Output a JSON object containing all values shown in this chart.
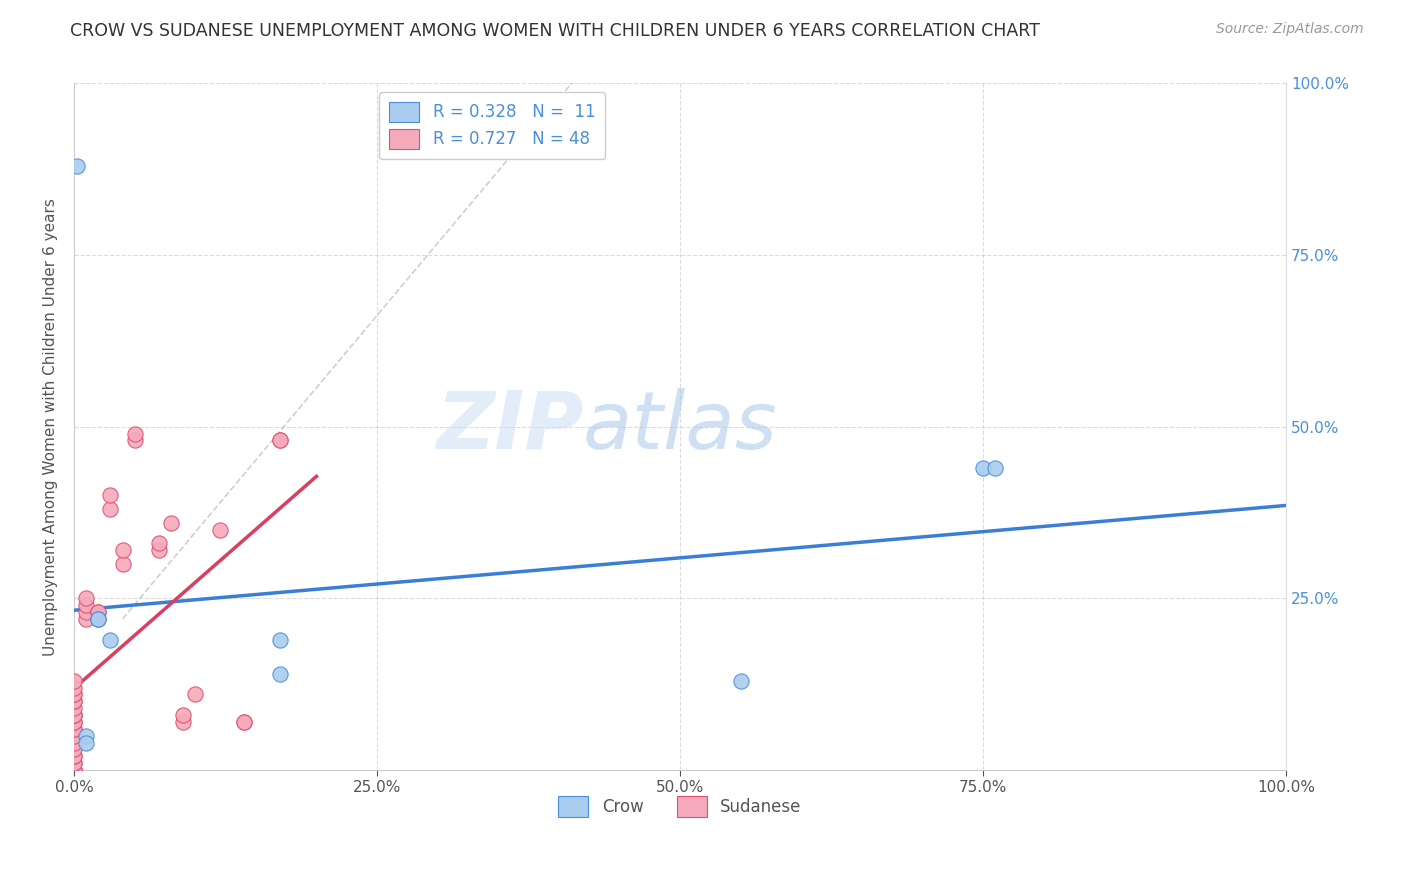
{
  "title": "CROW VS SUDANESE UNEMPLOYMENT AMONG WOMEN WITH CHILDREN UNDER 6 YEARS CORRELATION CHART",
  "source": "Source: ZipAtlas.com",
  "ylabel": "Unemployment Among Women with Children Under 6 years",
  "crow_R": 0.328,
  "crow_N": 11,
  "sudanese_R": 0.727,
  "sudanese_N": 48,
  "crow_color": "#aaccee",
  "crow_edge_color": "#4a90d9",
  "sudanese_color": "#f4aabb",
  "sudanese_edge_color": "#e05070",
  "crow_line_color": "#3a7fd5",
  "sudanese_line_color": "#d94060",
  "crow_points_x": [
    0.002,
    0.03,
    0.17,
    0.17,
    0.55,
    0.75,
    0.76,
    0.02,
    0.02,
    0.01,
    0.01
  ],
  "crow_points_y": [
    0.88,
    0.19,
    0.19,
    0.14,
    0.13,
    0.44,
    0.44,
    0.22,
    0.22,
    0.05,
    0.04
  ],
  "sudanese_points_x": [
    0.0,
    0.0,
    0.0,
    0.0,
    0.0,
    0.0,
    0.0,
    0.0,
    0.0,
    0.0,
    0.0,
    0.0,
    0.0,
    0.0,
    0.0,
    0.0,
    0.0,
    0.0,
    0.0,
    0.0,
    0.0,
    0.0,
    0.0,
    0.0,
    0.01,
    0.01,
    0.01,
    0.01,
    0.02,
    0.02,
    0.02,
    0.03,
    0.03,
    0.04,
    0.04,
    0.05,
    0.05,
    0.07,
    0.07,
    0.08,
    0.09,
    0.09,
    0.1,
    0.12,
    0.14,
    0.14,
    0.17,
    0.17
  ],
  "sudanese_points_y": [
    0.0,
    0.0,
    0.0,
    0.01,
    0.01,
    0.02,
    0.02,
    0.03,
    0.04,
    0.05,
    0.06,
    0.06,
    0.07,
    0.07,
    0.08,
    0.08,
    0.08,
    0.09,
    0.1,
    0.1,
    0.11,
    0.11,
    0.12,
    0.13,
    0.22,
    0.23,
    0.24,
    0.25,
    0.22,
    0.23,
    0.23,
    0.38,
    0.4,
    0.3,
    0.32,
    0.48,
    0.49,
    0.32,
    0.33,
    0.36,
    0.07,
    0.08,
    0.11,
    0.35,
    0.07,
    0.07,
    0.48,
    0.48
  ],
  "xlim": [
    0.0,
    1.0
  ],
  "ylim": [
    0.0,
    1.0
  ],
  "xtick_vals": [
    0.0,
    0.25,
    0.5,
    0.75,
    1.0
  ],
  "xtick_labels": [
    "0.0%",
    "25.0%",
    "50.0%",
    "75.0%",
    "100.0%"
  ],
  "ytick_vals": [
    0.0,
    0.25,
    0.5,
    0.75,
    1.0
  ],
  "background_color": "#ffffff",
  "grid_color": "#cccccc",
  "marker_size": 120
}
